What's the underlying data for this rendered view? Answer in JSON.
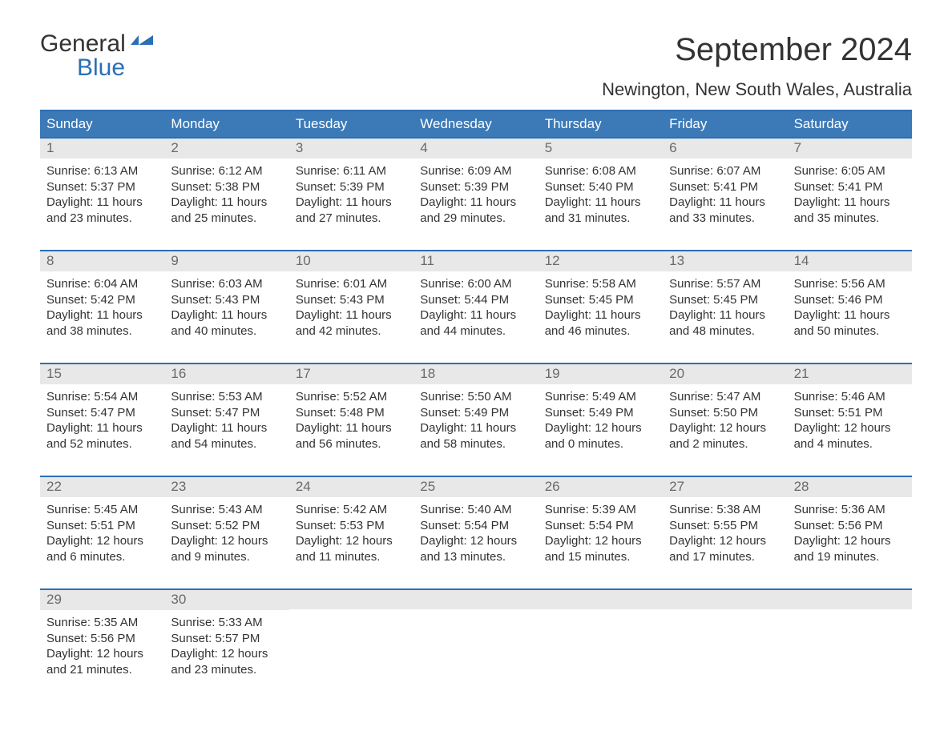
{
  "logo": {
    "word1": "General",
    "word2": "Blue"
  },
  "title": "September 2024",
  "location": "Newington, New South Wales, Australia",
  "colors": {
    "header_bg": "#3b79b7",
    "border": "#2c6fb5",
    "daynum_bg": "#e8e8e8",
    "daynum_text": "#6a6a6a",
    "body_text": "#333333",
    "white": "#ffffff"
  },
  "fonts": {
    "title_size_pt": 30,
    "location_size_pt": 17,
    "dow_size_pt": 13,
    "body_size_pt": 11
  },
  "days_of_week": [
    "Sunday",
    "Monday",
    "Tuesday",
    "Wednesday",
    "Thursday",
    "Friday",
    "Saturday"
  ],
  "labels": {
    "sunrise": "Sunrise:",
    "sunset": "Sunset:",
    "daylight": "Daylight:"
  },
  "calendar": {
    "leading_blanks": 0,
    "trailing_blanks": 5,
    "days": [
      {
        "n": 1,
        "sunrise": "6:13 AM",
        "sunset": "5:37 PM",
        "daylight": "11 hours and 23 minutes."
      },
      {
        "n": 2,
        "sunrise": "6:12 AM",
        "sunset": "5:38 PM",
        "daylight": "11 hours and 25 minutes."
      },
      {
        "n": 3,
        "sunrise": "6:11 AM",
        "sunset": "5:39 PM",
        "daylight": "11 hours and 27 minutes."
      },
      {
        "n": 4,
        "sunrise": "6:09 AM",
        "sunset": "5:39 PM",
        "daylight": "11 hours and 29 minutes."
      },
      {
        "n": 5,
        "sunrise": "6:08 AM",
        "sunset": "5:40 PM",
        "daylight": "11 hours and 31 minutes."
      },
      {
        "n": 6,
        "sunrise": "6:07 AM",
        "sunset": "5:41 PM",
        "daylight": "11 hours and 33 minutes."
      },
      {
        "n": 7,
        "sunrise": "6:05 AM",
        "sunset": "5:41 PM",
        "daylight": "11 hours and 35 minutes."
      },
      {
        "n": 8,
        "sunrise": "6:04 AM",
        "sunset": "5:42 PM",
        "daylight": "11 hours and 38 minutes."
      },
      {
        "n": 9,
        "sunrise": "6:03 AM",
        "sunset": "5:43 PM",
        "daylight": "11 hours and 40 minutes."
      },
      {
        "n": 10,
        "sunrise": "6:01 AM",
        "sunset": "5:43 PM",
        "daylight": "11 hours and 42 minutes."
      },
      {
        "n": 11,
        "sunrise": "6:00 AM",
        "sunset": "5:44 PM",
        "daylight": "11 hours and 44 minutes."
      },
      {
        "n": 12,
        "sunrise": "5:58 AM",
        "sunset": "5:45 PM",
        "daylight": "11 hours and 46 minutes."
      },
      {
        "n": 13,
        "sunrise": "5:57 AM",
        "sunset": "5:45 PM",
        "daylight": "11 hours and 48 minutes."
      },
      {
        "n": 14,
        "sunrise": "5:56 AM",
        "sunset": "5:46 PM",
        "daylight": "11 hours and 50 minutes."
      },
      {
        "n": 15,
        "sunrise": "5:54 AM",
        "sunset": "5:47 PM",
        "daylight": "11 hours and 52 minutes."
      },
      {
        "n": 16,
        "sunrise": "5:53 AM",
        "sunset": "5:47 PM",
        "daylight": "11 hours and 54 minutes."
      },
      {
        "n": 17,
        "sunrise": "5:52 AM",
        "sunset": "5:48 PM",
        "daylight": "11 hours and 56 minutes."
      },
      {
        "n": 18,
        "sunrise": "5:50 AM",
        "sunset": "5:49 PM",
        "daylight": "11 hours and 58 minutes."
      },
      {
        "n": 19,
        "sunrise": "5:49 AM",
        "sunset": "5:49 PM",
        "daylight": "12 hours and 0 minutes."
      },
      {
        "n": 20,
        "sunrise": "5:47 AM",
        "sunset": "5:50 PM",
        "daylight": "12 hours and 2 minutes."
      },
      {
        "n": 21,
        "sunrise": "5:46 AM",
        "sunset": "5:51 PM",
        "daylight": "12 hours and 4 minutes."
      },
      {
        "n": 22,
        "sunrise": "5:45 AM",
        "sunset": "5:51 PM",
        "daylight": "12 hours and 6 minutes."
      },
      {
        "n": 23,
        "sunrise": "5:43 AM",
        "sunset": "5:52 PM",
        "daylight": "12 hours and 9 minutes."
      },
      {
        "n": 24,
        "sunrise": "5:42 AM",
        "sunset": "5:53 PM",
        "daylight": "12 hours and 11 minutes."
      },
      {
        "n": 25,
        "sunrise": "5:40 AM",
        "sunset": "5:54 PM",
        "daylight": "12 hours and 13 minutes."
      },
      {
        "n": 26,
        "sunrise": "5:39 AM",
        "sunset": "5:54 PM",
        "daylight": "12 hours and 15 minutes."
      },
      {
        "n": 27,
        "sunrise": "5:38 AM",
        "sunset": "5:55 PM",
        "daylight": "12 hours and 17 minutes."
      },
      {
        "n": 28,
        "sunrise": "5:36 AM",
        "sunset": "5:56 PM",
        "daylight": "12 hours and 19 minutes."
      },
      {
        "n": 29,
        "sunrise": "5:35 AM",
        "sunset": "5:56 PM",
        "daylight": "12 hours and 21 minutes."
      },
      {
        "n": 30,
        "sunrise": "5:33 AM",
        "sunset": "5:57 PM",
        "daylight": "12 hours and 23 minutes."
      }
    ]
  }
}
